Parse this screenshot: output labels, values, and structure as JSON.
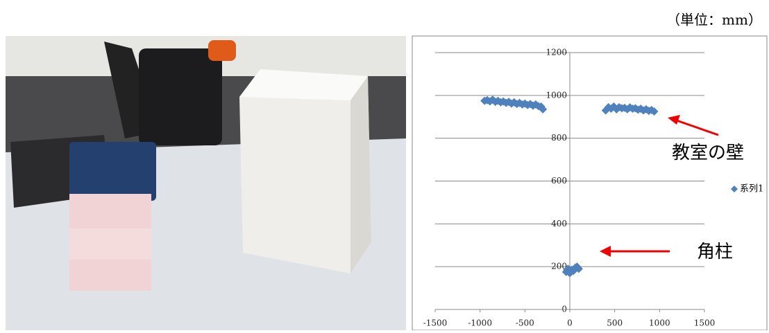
{
  "chart_data": {
    "type": "scatter",
    "unit_label": "（単位：mm）",
    "annotations": [
      "教室の壁",
      "角柱"
    ],
    "xlim": [
      -1500,
      1500
    ],
    "xticks": [
      -1500,
      -1000,
      -500,
      0,
      500,
      1000,
      1500
    ],
    "ylim": [
      0,
      1200
    ],
    "yticks": [
      0,
      200,
      400,
      600,
      800,
      1000,
      1200
    ],
    "grid": true,
    "legend": "right",
    "series": [
      {
        "name": "系列1",
        "color": "#4f81bd",
        "x": [
          -950,
          -920,
          -890,
          -860,
          -830,
          -800,
          -770,
          -740,
          -710,
          -680,
          -650,
          -620,
          -590,
          -560,
          -530,
          -500,
          -470,
          -440,
          -410,
          -380,
          -350,
          -320,
          -300,
          400,
          430,
          460,
          490,
          520,
          550,
          580,
          610,
          640,
          670,
          700,
          730,
          760,
          790,
          820,
          850,
          880,
          910,
          940,
          -40,
          -20,
          0,
          20,
          40,
          60,
          80,
          100,
          -30,
          10
        ],
        "values": [
          975,
          978,
          972,
          980,
          970,
          975,
          968,
          972,
          965,
          970,
          962,
          968,
          960,
          965,
          958,
          962,
          955,
          960,
          952,
          958,
          950,
          948,
          935,
          930,
          945,
          938,
          948,
          935,
          945,
          940,
          942,
          935,
          944,
          938,
          940,
          933,
          938,
          930,
          935,
          928,
          932,
          925,
          175,
          190,
          170,
          185,
          180,
          195,
          200,
          190,
          185,
          178
        ]
      }
    ]
  }
}
